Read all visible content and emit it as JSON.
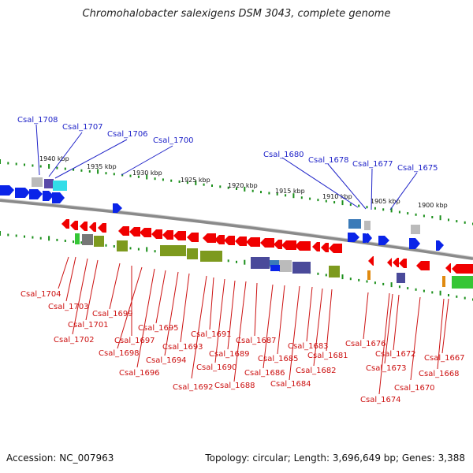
{
  "title": "Chromohalobacter salexigens DSM 3043, complete genome",
  "footer": {
    "accession_label": "Accession:",
    "accession": "NC_007963",
    "summary": "Topology: circular; Length: 3,696,649 bp; Genes: 3,388"
  },
  "colors": {
    "forward_gene": "#0a24e8",
    "reverse_gene": "#f00000",
    "forward_label": "#1f23c8",
    "reverse_label": "#cc1111",
    "backbone": "#8a8a8a",
    "tick": "#1a8f1a",
    "olive": "#7d9a1e",
    "navy": "#4a4a9a",
    "cyan": "#33dde8",
    "gray": "#bbbbbb",
    "green": "#35c635",
    "orange": "#e08a10"
  },
  "scale": {
    "unit": "kbp",
    "labels": [
      "1940 kbp",
      "1935 kbp",
      "1930 kbp",
      "1925 kbp",
      "1920 kbp",
      "1915 kbp",
      "1910 kbp",
      "1905 kbp",
      "1900 kbp"
    ]
  },
  "forward_genes": [
    "Csal_1708",
    "Csal_1707",
    "Csal_1706",
    "Csal_1700",
    "Csal_1680",
    "Csal_1678",
    "Csal_1677",
    "Csal_1675"
  ],
  "reverse_genes": [
    "Csal_1704",
    "Csal_1703",
    "Csal_1701",
    "Csal_1702",
    "Csal_1699",
    "Csal_1698",
    "Csal_1697",
    "Csal_1696",
    "Csal_1695",
    "Csal_1694",
    "Csal_1693",
    "Csal_1692",
    "Csal_1691",
    "Csal_1690",
    "Csal_1689",
    "Csal_1688",
    "Csal_1687",
    "Csal_1686",
    "Csal_1685",
    "Csal_1684",
    "Csal_1683",
    "Csal_1682",
    "Csal_1681",
    "Csal_1676",
    "Csal_1674",
    "Csal_1673",
    "Csal_1672",
    "Csal_1670",
    "Csal_1668",
    "Csal_1667"
  ]
}
